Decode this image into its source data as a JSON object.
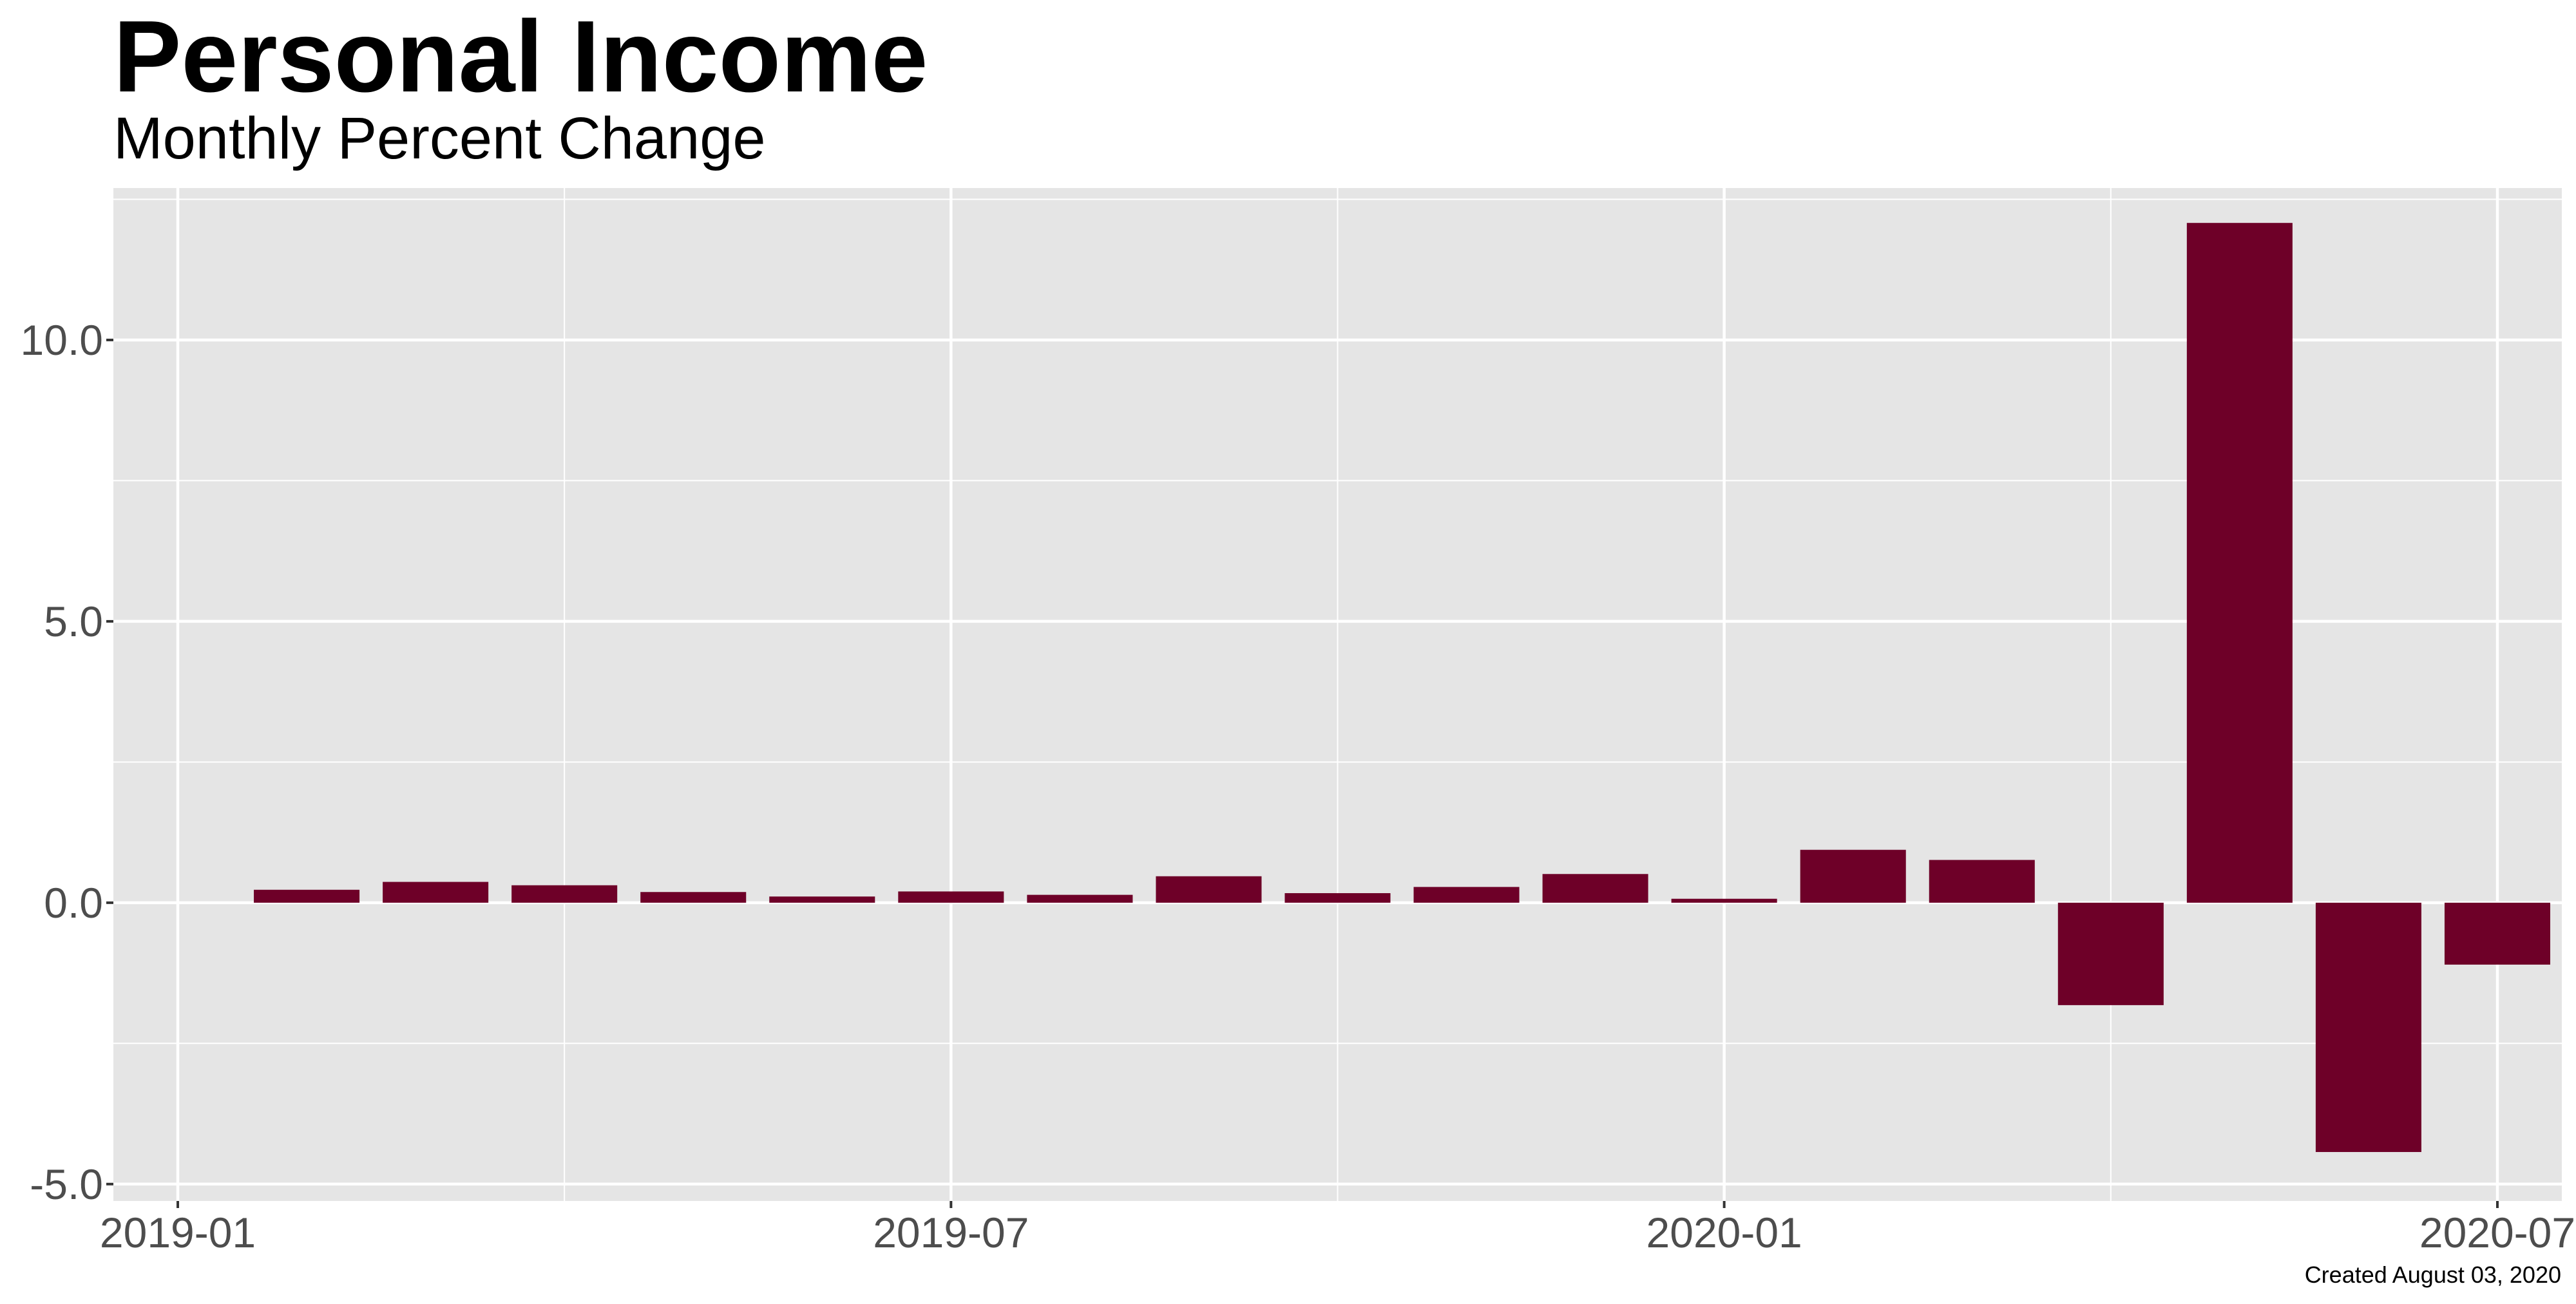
{
  "chart_data": {
    "type": "bar",
    "title": "Personal Income",
    "subtitle": "Monthly Percent Change",
    "caption": "Created August 03, 2020",
    "xlabel": "",
    "ylabel": "",
    "categories": [
      "2019-02",
      "2019-03",
      "2019-04",
      "2019-05",
      "2019-06",
      "2019-07",
      "2019-08",
      "2019-09",
      "2019-10",
      "2019-11",
      "2019-12",
      "2020-01",
      "2020-02",
      "2020-03",
      "2020-04",
      "2020-05",
      "2020-06",
      "2020-07"
    ],
    "values": [
      0.23,
      0.37,
      0.31,
      0.19,
      0.11,
      0.2,
      0.14,
      0.47,
      0.17,
      0.28,
      0.51,
      0.07,
      0.94,
      0.76,
      -1.82,
      12.08,
      -4.43,
      -1.1
    ],
    "ylim": [
      -5.3,
      12.7
    ],
    "y_ticks": [
      -5.0,
      0.0,
      5.0,
      10.0
    ],
    "y_tick_labels": [
      "-5.0",
      "0.0",
      "5.0",
      "10.0"
    ],
    "x_ticks": [
      "2019-01",
      "2019-07",
      "2020-01",
      "2020-07"
    ],
    "x_tick_labels": [
      "2019-01",
      "2019-07",
      "2020-01",
      "2020-07"
    ],
    "grid": true,
    "legend": "none",
    "bar_color": "#6e0028",
    "panel_background": "#e5e5e5"
  }
}
